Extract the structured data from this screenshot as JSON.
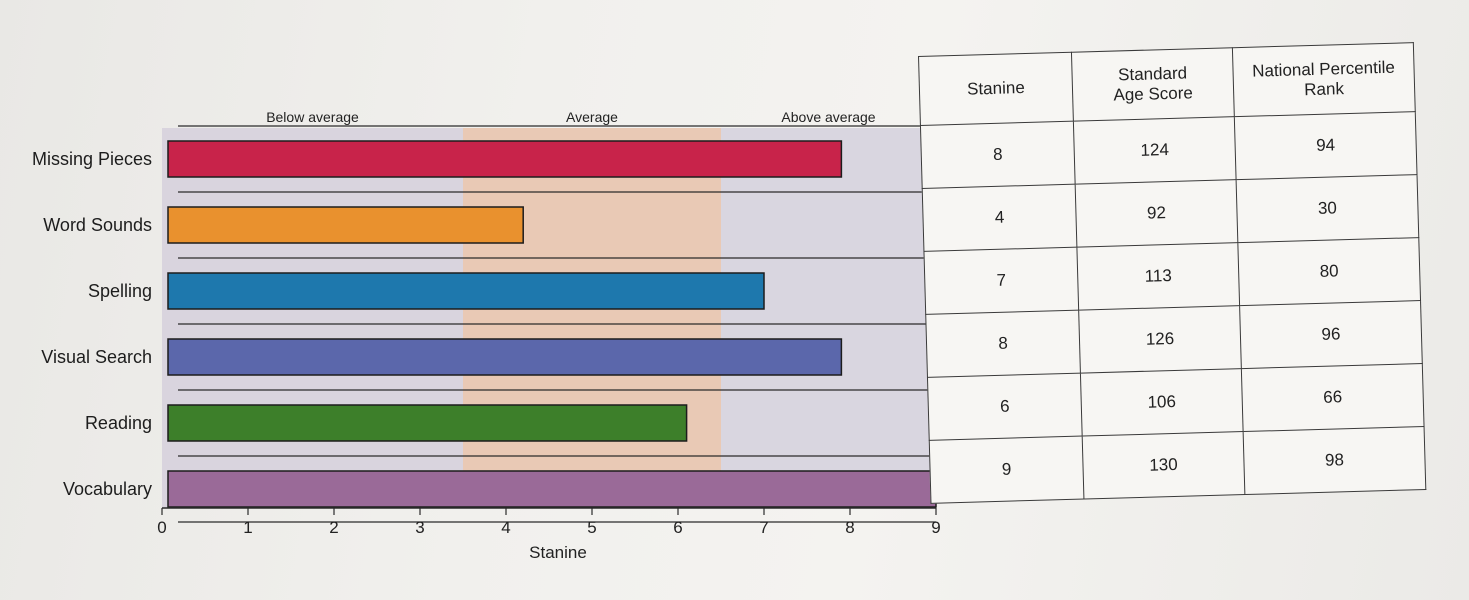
{
  "chart_data": {
    "type": "bar",
    "orientation": "horizontal",
    "categories": [
      "Missing Pieces",
      "Word Sounds",
      "Spelling",
      "Visual Search",
      "Reading",
      "Vocabulary"
    ],
    "values": [
      7.9,
      4.2,
      7.0,
      7.9,
      6.1,
      9.0
    ],
    "colors": [
      "#c8234a",
      "#e9912e",
      "#1e78ad",
      "#5b67ab",
      "#3d7f2a",
      "#9a6a98"
    ],
    "xlabel": "Stanine",
    "xlim": [
      0,
      9
    ],
    "xticks": [
      "0",
      "1",
      "2",
      "3",
      "4",
      "5",
      "6",
      "7",
      "8",
      "9"
    ],
    "bands": [
      {
        "label": "Below average",
        "from": 0,
        "to": 3.5,
        "color": "#d9d4de"
      },
      {
        "label": "Average",
        "from": 3.5,
        "to": 6.5,
        "color": "#e9c9b5"
      },
      {
        "label": "Above average",
        "from": 6.5,
        "to": 9,
        "color": "#d9d6e0"
      }
    ],
    "table": {
      "columns": [
        "Stanine",
        "Standard Age Score",
        "National Percentile Rank"
      ],
      "rows": [
        [
          "8",
          "124",
          "94"
        ],
        [
          "4",
          "92",
          "30"
        ],
        [
          "7",
          "113",
          "80"
        ],
        [
          "8",
          "126",
          "96"
        ],
        [
          "6",
          "106",
          "66"
        ],
        [
          "9",
          "130",
          "98"
        ]
      ]
    }
  }
}
